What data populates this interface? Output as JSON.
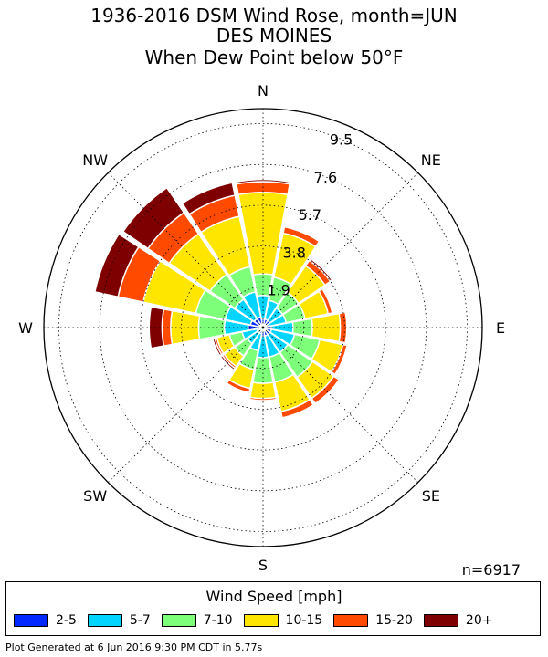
{
  "title": {
    "line1": "1936-2016 DSM Wind Rose, month=JUN",
    "line2": "DES MOINES",
    "line3": "When  Dew Point below 50°F"
  },
  "chart_data": {
    "type": "windrose",
    "directions": [
      "N",
      "NNE",
      "NE",
      "ENE",
      "E",
      "ESE",
      "SE",
      "SSE",
      "S",
      "SSW",
      "SW",
      "WSW",
      "W",
      "WNW",
      "NW",
      "NNW"
    ],
    "compass_labels": [
      "N",
      "NE",
      "E",
      "SE",
      "S",
      "SW",
      "W",
      "NW"
    ],
    "radial_ticks": [
      "1.9",
      "3.8",
      "5.7",
      "7.6",
      "9.5"
    ],
    "radial_tick_values": [
      1.9,
      3.8,
      5.7,
      7.6,
      9.5
    ],
    "rmax": 10.2,
    "speed_bins": [
      "2-5",
      "5-7",
      "7-10",
      "10-15",
      "15-20",
      "20+"
    ],
    "bin_colors": [
      "#0028ff",
      "#00d4ff",
      "#7dff7a",
      "#ffe600",
      "#ff4a00",
      "#7f0000"
    ],
    "series": [
      {
        "name": "2-5",
        "values": [
          0.4,
          0.4,
          0.4,
          0.3,
          0.4,
          0.4,
          0.4,
          0.4,
          0.4,
          0.3,
          0.3,
          0.3,
          0.7,
          0.6,
          0.5,
          0.5
        ]
      },
      {
        "name": "5-7",
        "values": [
          1.1,
          0.9,
          0.7,
          0.8,
          1.0,
          1.1,
          1.0,
          1.0,
          1.0,
          0.8,
          0.6,
          0.7,
          1.1,
          1.2,
          1.1,
          1.2
        ]
      },
      {
        "name": "7-10",
        "values": [
          1.0,
          1.1,
          0.9,
          0.9,
          0.9,
          1.2,
          1.4,
          1.2,
          1.2,
          0.9,
          0.7,
          0.6,
          1.2,
          1.4,
          1.4,
          1.2
        ]
      },
      {
        "name": "10-15",
        "values": [
          3.8,
          2.1,
          1.5,
          1.1,
          1.3,
          1.1,
          1.2,
          1.4,
          0.7,
          0.9,
          0.6,
          0.6,
          1.3,
          2.5,
          2.3,
          2.4
        ]
      },
      {
        "name": "15-20",
        "values": [
          0.5,
          0.3,
          0.3,
          0.2,
          0.3,
          0.2,
          0.3,
          0.3,
          0.1,
          0.2,
          0.1,
          0.1,
          0.4,
          1.2,
          1.2,
          1.0
        ]
      },
      {
        "name": "20+",
        "values": [
          0.1,
          0.05,
          0.1,
          0.05,
          0.0,
          0.0,
          0.05,
          0.05,
          0.0,
          0.05,
          0.1,
          0.1,
          0.6,
          1.1,
          1.4,
          0.6
        ]
      }
    ],
    "n_label": "n=6917"
  },
  "legend": {
    "title": "Wind Speed [mph]",
    "items": [
      {
        "label": "2-5",
        "color": "#0028ff"
      },
      {
        "label": "5-7",
        "color": "#00d4ff"
      },
      {
        "label": "7-10",
        "color": "#7dff7a"
      },
      {
        "label": "10-15",
        "color": "#ffe600"
      },
      {
        "label": "15-20",
        "color": "#ff4a00"
      },
      {
        "label": "20+",
        "color": "#7f0000"
      }
    ]
  },
  "footer": "Plot Generated at 6 Jun 2016 9:30 PM CDT in 5.77s"
}
